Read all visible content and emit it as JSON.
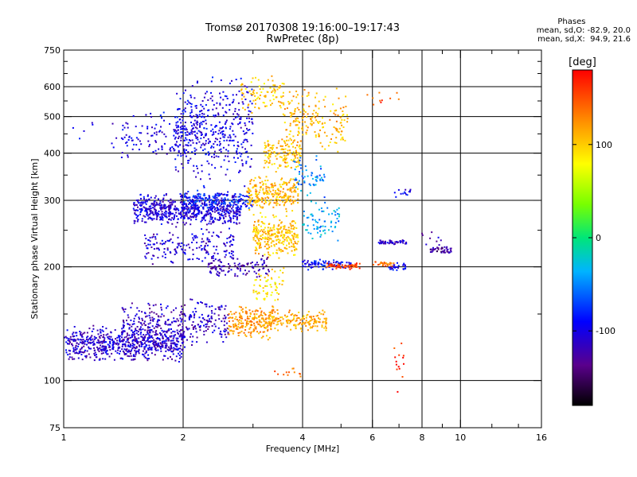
{
  "title_line1": "Tromsø 20170308 19:16:00–19:17:43",
  "title_line2": "RwPretec (8p)",
  "phases": {
    "title": "Phases",
    "o_line": "mean, sd,O: -82.9, 20.0",
    "x_line": "mean, sd,X:  94.9, 21.6"
  },
  "colorbar": {
    "label": "[deg]",
    "ticks": [
      {
        "value": 100,
        "label": "100"
      },
      {
        "value": 0,
        "label": "0"
      },
      {
        "value": -100,
        "label": "-100"
      }
    ],
    "range": [
      -180,
      180
    ]
  },
  "chart_data": {
    "type": "scatter",
    "xlabel": "Frequency [MHz]",
    "ylabel": "Stationary phase Virtual Height [km]",
    "x_scale": "log",
    "y_scale": "log",
    "xlim": [
      1,
      16
    ],
    "ylim": [
      75,
      750
    ],
    "x_ticks": [
      1,
      2,
      4,
      6,
      8,
      10,
      16
    ],
    "x_minor_ticks": [
      3,
      5,
      7,
      9,
      12,
      14
    ],
    "y_ticks": [
      75,
      100,
      200,
      300,
      400,
      500,
      600,
      750
    ],
    "y_minor_ticks": [
      150,
      250,
      350,
      450,
      550,
      650,
      700
    ],
    "grid_x": [
      2,
      4,
      6,
      8,
      10
    ],
    "grid_y": [
      100,
      200,
      300,
      400,
      500,
      600
    ],
    "clusters": [
      {
        "x": [
          1.0,
          2.0
        ],
        "y": [
          112,
          140
        ],
        "phase": -110,
        "n": 650
      },
      {
        "x": [
          1.4,
          2.6
        ],
        "y": [
          120,
          165
        ],
        "phase": -115,
        "n": 350
      },
      {
        "x": [
          1.5,
          2.8
        ],
        "y": [
          255,
          315
        ],
        "phase": -105,
        "n": 650
      },
      {
        "x": [
          2.0,
          3.0
        ],
        "y": [
          280,
          320
        ],
        "phase": -80,
        "n": 150
      },
      {
        "x": [
          1.6,
          2.7
        ],
        "y": [
          200,
          255
        ],
        "phase": -110,
        "n": 180
      },
      {
        "x": [
          1.9,
          3.0
        ],
        "y": [
          320,
          650
        ],
        "phase": -100,
        "n": 450
      },
      {
        "x": [
          1.4,
          2.0
        ],
        "y": [
          380,
          520
        ],
        "phase": -100,
        "n": 100
      },
      {
        "x": [
          2.9,
          3.9
        ],
        "y": [
          280,
          350
        ],
        "phase": 110,
        "n": 250
      },
      {
        "x": [
          3.0,
          3.9
        ],
        "y": [
          210,
          280
        ],
        "phase": 105,
        "n": 280
      },
      {
        "x": [
          3.2,
          4.0
        ],
        "y": [
          350,
          450
        ],
        "phase": 105,
        "n": 150
      },
      {
        "x": [
          3.0,
          3.6
        ],
        "y": [
          160,
          200
        ],
        "phase": 90,
        "n": 60
      },
      {
        "x": [
          3.6,
          5.2
        ],
        "y": [
          400,
          600
        ],
        "phase": 110,
        "n": 180
      },
      {
        "x": [
          2.6,
          3.4
        ],
        "y": [
          128,
          160
        ],
        "phase": 120,
        "n": 220
      },
      {
        "x": [
          3.3,
          4.6
        ],
        "y": [
          135,
          155
        ],
        "phase": 115,
        "n": 160
      },
      {
        "x": [
          2.8,
          3.6
        ],
        "y": [
          500,
          650
        ],
        "phase": 100,
        "n": 90
      },
      {
        "x": [
          2.3,
          3.3
        ],
        "y": [
          185,
          215
        ],
        "phase": -120,
        "n": 110
      },
      {
        "x": [
          4.0,
          5.3
        ],
        "y": [
          196,
          210
        ],
        "phase": -90,
        "n": 90
      },
      {
        "x": [
          4.6,
          5.6
        ],
        "y": [
          197,
          205
        ],
        "phase": 150,
        "n": 60
      },
      {
        "x": [
          4.0,
          5.0
        ],
        "y": [
          230,
          300
        ],
        "phase": -40,
        "n": 70
      },
      {
        "x": [
          3.8,
          4.6
        ],
        "y": [
          300,
          400
        ],
        "phase": -50,
        "n": 60
      },
      {
        "x": [
          6.2,
          7.3
        ],
        "y": [
          229,
          236
        ],
        "phase": -110,
        "n": 45
      },
      {
        "x": [
          8.4,
          9.5
        ],
        "y": [
          217,
          227
        ],
        "phase": -130,
        "n": 45
      },
      {
        "x": [
          6.8,
          7.5
        ],
        "y": [
          305,
          325
        ],
        "phase": -100,
        "n": 14
      },
      {
        "x": [
          6.0,
          6.9
        ],
        "y": [
          200,
          208
        ],
        "phase": 140,
        "n": 28
      },
      {
        "x": [
          6.6,
          7.3
        ],
        "y": [
          195,
          205
        ],
        "phase": -100,
        "n": 28
      },
      {
        "x": [
          5.8,
          7.0
        ],
        "y": [
          500,
          610
        ],
        "phase": 150,
        "n": 10
      },
      {
        "x": [
          6.8,
          7.2
        ],
        "y": [
          90,
          130
        ],
        "phase": 160,
        "n": 14
      },
      {
        "x": [
          8.0,
          9.0
        ],
        "y": [
          215,
          255
        ],
        "phase": -120,
        "n": 10
      },
      {
        "x": [
          1.05,
          1.5
        ],
        "y": [
          400,
          500
        ],
        "phase": -100,
        "n": 10
      },
      {
        "x": [
          3.4,
          4.2
        ],
        "y": [
          100,
          110
        ],
        "phase": 140,
        "n": 12
      }
    ]
  }
}
